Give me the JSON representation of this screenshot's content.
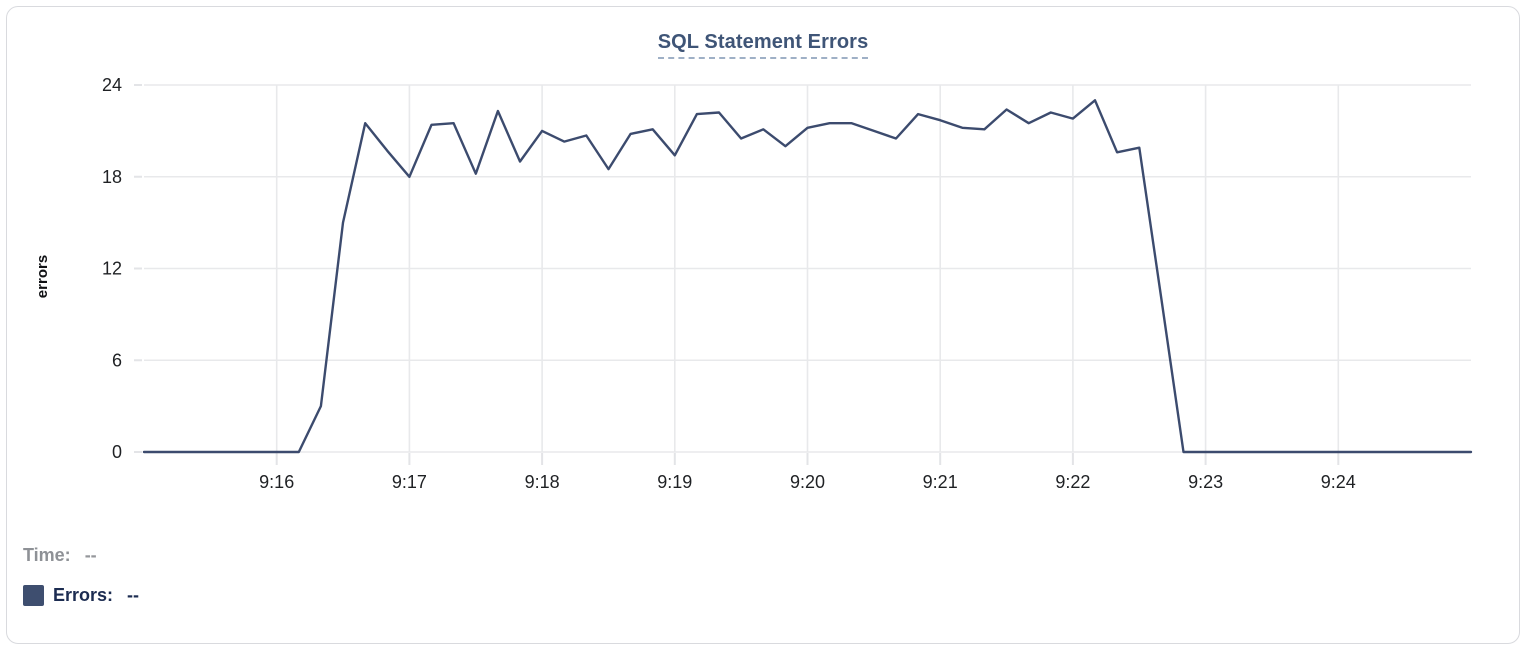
{
  "header": {
    "title": "SQL Statement Errors"
  },
  "legend": {
    "time_label": "Time:",
    "time_value": "--",
    "errors_label": "Errors:",
    "errors_value": "--"
  },
  "colors": {
    "line": "#3c4b6e",
    "legend_swatch": "#3e4e6f",
    "title": "#3f5577",
    "title_underline": "#9fb0c6",
    "grid": "#e8e9eb",
    "tick": "#e3e4e7",
    "tick_text": "#1f2124",
    "time_label": "#8e9196",
    "errors_label": "#1c2c51",
    "card_border": "#d9dade"
  },
  "chart_data": {
    "type": "line",
    "title": "SQL Statement Errors",
    "xlabel": "",
    "ylabel": "errors",
    "ylim": [
      0,
      24
    ],
    "y_ticks": [
      0,
      6,
      12,
      18,
      24
    ],
    "x_ticks": [
      "9:16",
      "9:17",
      "9:18",
      "9:19",
      "9:20",
      "9:21",
      "9:22",
      "9:23",
      "9:24"
    ],
    "x_start": "9:15:00",
    "x_end": "9:25:00",
    "x_interval_seconds": 10,
    "grid": true,
    "legend_position": "bottom-left",
    "series": [
      {
        "name": "Errors",
        "values": [
          0,
          0,
          0,
          0,
          0,
          0,
          0,
          0,
          3,
          15,
          21.5,
          19.7,
          18,
          21.4,
          21.5,
          18.2,
          22.3,
          19,
          21,
          20.3,
          20.7,
          18.5,
          20.8,
          21.1,
          19.4,
          22.1,
          22.2,
          20.5,
          21.1,
          20,
          21.2,
          21.5,
          21.5,
          21,
          20.5,
          22.1,
          21.7,
          21.2,
          21.1,
          22.4,
          21.5,
          22.2,
          21.8,
          23,
          19.6,
          19.9,
          10,
          0,
          0,
          0,
          0,
          0,
          0,
          0,
          0,
          0,
          0,
          0,
          0,
          0,
          0
        ]
      }
    ]
  }
}
